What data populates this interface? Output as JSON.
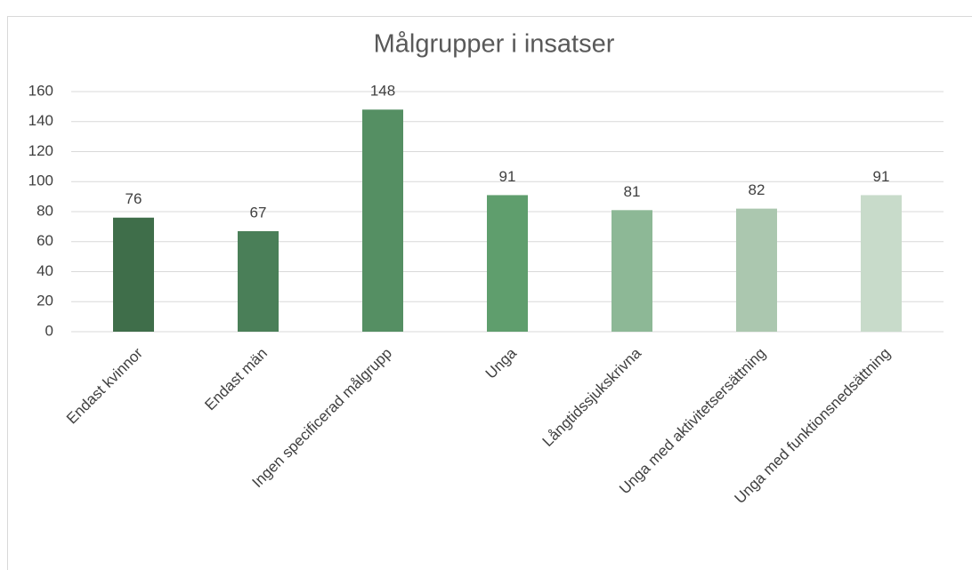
{
  "chart_data": {
    "type": "bar",
    "title": "Målgrupper i insatser",
    "categories": [
      "Endast kvinnor",
      "Endast män",
      "Ingen specificerad målgrupp",
      "Unga",
      "Långtidssjukskrivna",
      "Unga med aktivitetsersättning",
      "Unga med funktionsnedsättning"
    ],
    "values": [
      76,
      67,
      148,
      91,
      81,
      82,
      91
    ],
    "colors": [
      "#3f6e4a",
      "#4a7f58",
      "#558f63",
      "#5f9e6d",
      "#8db896",
      "#abc7af",
      "#c8dbca"
    ],
    "ylim": [
      0,
      160
    ],
    "yticks": [
      0,
      20,
      40,
      60,
      80,
      100,
      120,
      140,
      160
    ],
    "grid": true
  }
}
